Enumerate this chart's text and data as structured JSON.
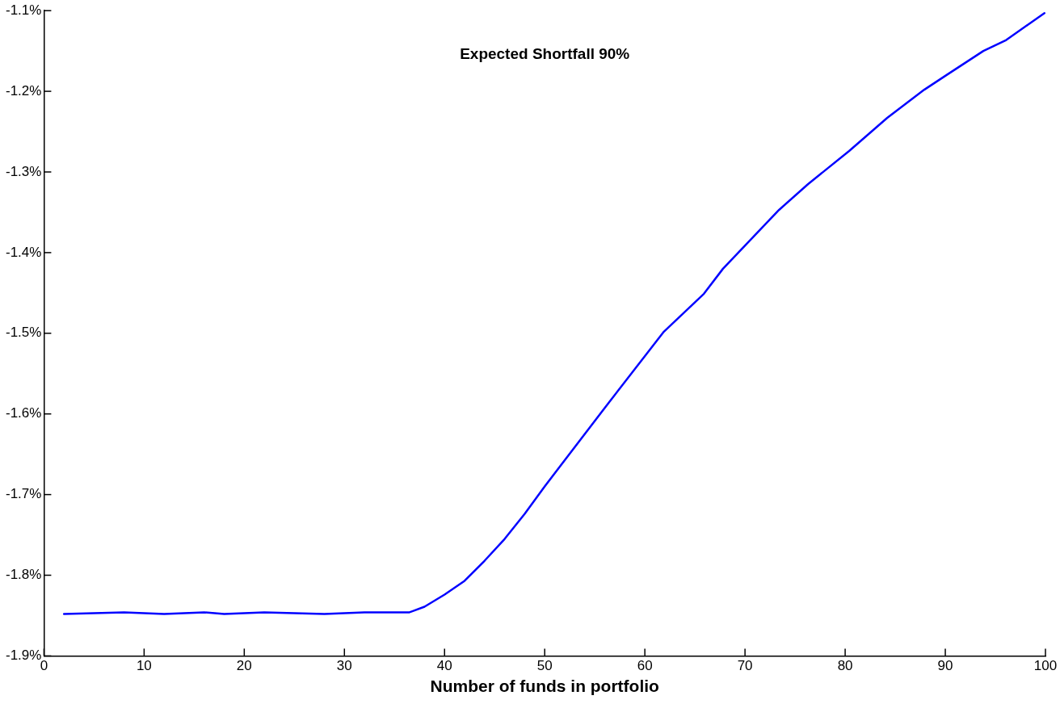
{
  "chart_data": {
    "type": "line",
    "title": "Expected Shortfall 90%",
    "xlabel": "Number of funds in portfolio",
    "xlim": [
      0,
      100
    ],
    "xticks": [
      0,
      10,
      20,
      30,
      40,
      50,
      60,
      70,
      80,
      90,
      100
    ],
    "ylim": [
      -1.9,
      -1.1
    ],
    "yticks": [
      {
        "value": -1.9,
        "label": "-1.9%"
      },
      {
        "value": -1.8,
        "label": "-1.8%"
      },
      {
        "value": -1.7,
        "label": "-1.7%"
      },
      {
        "value": -1.6,
        "label": "-1.6%"
      },
      {
        "value": -1.5,
        "label": "-1.5%"
      },
      {
        "value": -1.4,
        "label": "-1.4%"
      },
      {
        "value": -1.3,
        "label": "-1.3%"
      },
      {
        "value": -1.2,
        "label": "-1.2%"
      },
      {
        "value": -1.1,
        "label": "-1.1%"
      }
    ],
    "grid": false,
    "legend": false,
    "marker": "none",
    "line_style": "solid",
    "series": [
      {
        "color": "#0000ff",
        "x": [
          2,
          8,
          12,
          16,
          18,
          22,
          28,
          32,
          36.5,
          38,
          40,
          42,
          44,
          46,
          48,
          50,
          51.4,
          56.4,
          61.9,
          65.9,
          67.8,
          73.4,
          76.3,
          80.4,
          84.2,
          87.9,
          90.1,
          93.8,
          96,
          99.9
        ],
        "values": [
          -1.848,
          -1.846,
          -1.848,
          -1.846,
          -1.848,
          -1.846,
          -1.848,
          -1.846,
          -1.846,
          -1.839,
          -1.824,
          -1.807,
          -1.782,
          -1.755,
          -1.724,
          -1.69,
          -1.667,
          -1.586,
          -1.498,
          -1.451,
          -1.42,
          -1.347,
          -1.315,
          -1.274,
          -1.233,
          -1.198,
          -1.18,
          -1.15,
          -1.137,
          -1.103
        ]
      }
    ]
  }
}
